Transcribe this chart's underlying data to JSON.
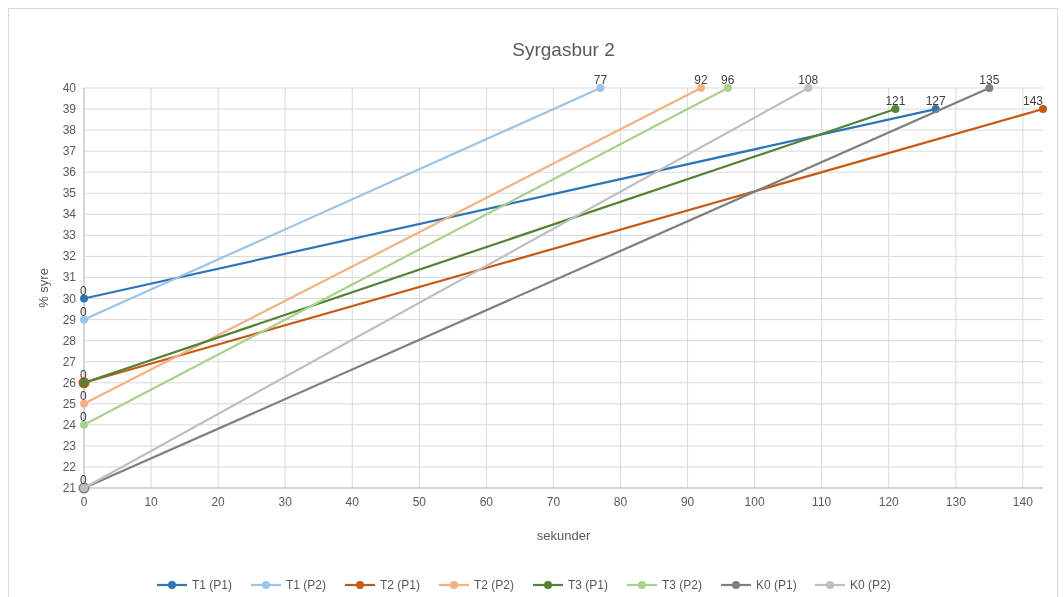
{
  "chart_data": {
    "type": "line",
    "title": "Syrgasbur 2",
    "xlabel": "sekunder",
    "ylabel": "% syre",
    "xlim": [
      0,
      143
    ],
    "xticks": [
      0,
      10,
      20,
      30,
      40,
      50,
      60,
      70,
      80,
      90,
      100,
      110,
      120,
      130,
      140
    ],
    "ylim": [
      21,
      40
    ],
    "yticks": [
      21,
      22,
      23,
      24,
      25,
      26,
      27,
      28,
      29,
      30,
      31,
      32,
      33,
      34,
      35,
      36,
      37,
      38,
      39,
      40
    ],
    "grid": true,
    "legend": "bottom",
    "marker": "circle",
    "series": [
      {
        "name": "T1 (P1)",
        "color": "#2e75b6",
        "x": [
          0,
          127
        ],
        "values": [
          30,
          39
        ]
      },
      {
        "name": "T1 (P2)",
        "color": "#9dc3e6",
        "x": [
          0,
          77
        ],
        "values": [
          29,
          40
        ]
      },
      {
        "name": "T2 (P1)",
        "color": "#c55a11",
        "x": [
          0,
          143
        ],
        "values": [
          26,
          39
        ]
      },
      {
        "name": "T2 (P2)",
        "color": "#f4b183",
        "x": [
          0,
          92
        ],
        "values": [
          25,
          40
        ]
      },
      {
        "name": "T3 (P1)",
        "color": "#548235",
        "x": [
          0,
          121
        ],
        "values": [
          26,
          39
        ]
      },
      {
        "name": "T3 (P2)",
        "color": "#a9d18e",
        "x": [
          0,
          96
        ],
        "values": [
          24,
          40
        ]
      },
      {
        "name": "K0 (P1)",
        "color": "#7f7f7f",
        "x": [
          0,
          135
        ],
        "values": [
          21,
          40
        ]
      },
      {
        "name": "K0 (P2)",
        "color": "#bfbfbf",
        "x": [
          0,
          108
        ],
        "values": [
          21,
          40
        ]
      }
    ],
    "annotations": [
      {
        "text": "0",
        "x": 0,
        "y": 30
      },
      {
        "text": "0",
        "x": 0,
        "y": 29
      },
      {
        "text": "0",
        "x": 0,
        "y": 26
      },
      {
        "text": "0",
        "x": 0,
        "y": 25
      },
      {
        "text": "0",
        "x": 0,
        "y": 24
      },
      {
        "text": "0",
        "x": 0,
        "y": 21
      },
      {
        "text": "127",
        "x": 127,
        "y": 39
      },
      {
        "text": "77",
        "x": 77,
        "y": 40
      },
      {
        "text": "143",
        "x": 143,
        "y": 39
      },
      {
        "text": "92",
        "x": 92,
        "y": 40
      },
      {
        "text": "121",
        "x": 121,
        "y": 39
      },
      {
        "text": "96",
        "x": 96,
        "y": 40
      },
      {
        "text": "135",
        "x": 135,
        "y": 40
      },
      {
        "text": "108",
        "x": 108,
        "y": 40
      }
    ]
  }
}
